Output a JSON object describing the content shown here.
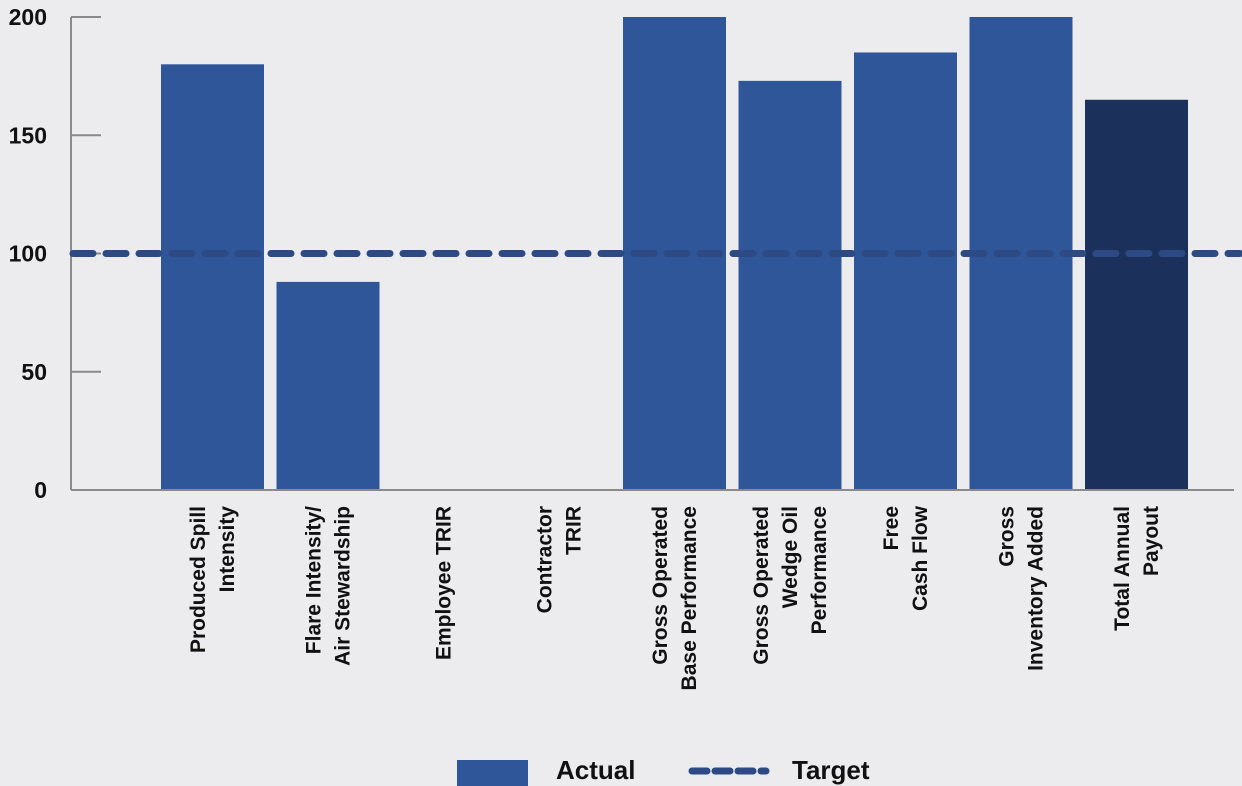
{
  "chart_data": {
    "type": "bar",
    "title": "",
    "xlabel": "",
    "ylabel": "",
    "ylim": [
      0,
      200
    ],
    "yticks": [
      0,
      50,
      100,
      150,
      200
    ],
    "grid": false,
    "legend_position": "bottom",
    "categories": [
      [
        "Produced Spill",
        "Intensity"
      ],
      [
        "Flare Intensity/",
        "Air Stewardship"
      ],
      [
        "Employee TRIR"
      ],
      [
        "Contractor",
        "TRIR"
      ],
      [
        "Gross Operated",
        "Base Performance"
      ],
      [
        "Gross Operated",
        "Wedge Oil",
        "Performance"
      ],
      [
        "Free",
        "Cash Flow"
      ],
      [
        "Gross",
        "Inventory Added"
      ],
      [
        "Total Annual",
        "Payout"
      ]
    ],
    "series": [
      {
        "name": "Actual",
        "values": [
          180,
          88,
          0,
          0,
          200,
          173,
          185,
          200,
          165
        ],
        "color": "#30569a",
        "highlight_color": "#1c305c",
        "highlight_index": 8
      }
    ],
    "target": {
      "name": "Target",
      "value": 100,
      "color": "#2d4a85"
    },
    "colors": {
      "background": "#ececee",
      "axis": "#8a8a8a",
      "text": "#111111"
    }
  }
}
